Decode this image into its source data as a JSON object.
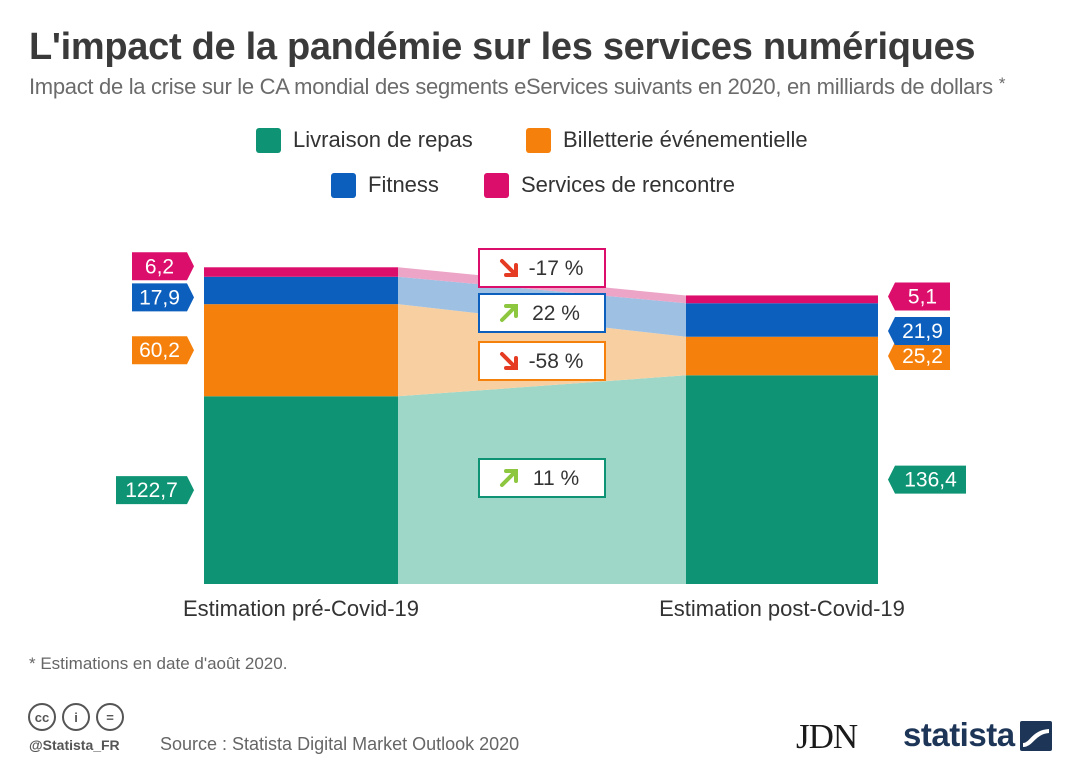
{
  "title": "L'impact de la pandémie sur les services numériques",
  "subtitle": "Impact de la crise sur le CA mondial des segments eServices suivants en 2020, en milliards de dollars",
  "subtitle_marker": "*",
  "legend": [
    {
      "label": "Livraison de repas",
      "color": "#0e9474"
    },
    {
      "label": "Billetterie événementielle",
      "color": "#f5810c"
    },
    {
      "label": "Fitness",
      "color": "#0c5fbd"
    },
    {
      "label": "Services de rencontre",
      "color": "#dc0e6b"
    }
  ],
  "chart_data": {
    "type": "bar",
    "stacked": true,
    "categories": [
      "Estimation pré-Covid-19",
      "Estimation post-Covid-19"
    ],
    "series": [
      {
        "name": "Livraison de repas",
        "values": [
          122.7,
          136.4
        ],
        "labels": [
          "122,7",
          "136,4"
        ],
        "change": "11 %",
        "direction": "up",
        "color": "#0e9474",
        "flow_color": "#9ed7c8"
      },
      {
        "name": "Billetterie événementielle",
        "values": [
          60.2,
          25.2
        ],
        "labels": [
          "60,2",
          "25,2"
        ],
        "change": "-58 %",
        "direction": "down",
        "color": "#f5810c",
        "flow_color": "#f8cfa0"
      },
      {
        "name": "Fitness",
        "values": [
          17.9,
          21.9
        ],
        "labels": [
          "17,9",
          "21,9"
        ],
        "change": "22 %",
        "direction": "up",
        "color": "#0c5fbd",
        "flow_color": "#9ec0e3"
      },
      {
        "name": "Services de rencontre",
        "values": [
          6.2,
          5.1
        ],
        "labels": [
          "6,2",
          "5,1"
        ],
        "change": "-17 %",
        "direction": "down",
        "color": "#dc0e6b",
        "flow_color": "#eca4c7"
      }
    ],
    "change_colors": {
      "up": "#8dc63f",
      "down": "#e53b22"
    }
  },
  "footnote": "* Estimations en date d'août 2020.",
  "license_icons": [
    "cc-icon",
    "by-icon",
    "nd-icon"
  ],
  "license_symbols": [
    "cc",
    "i",
    "="
  ],
  "handle": "@Statista_FR",
  "source": "Source : Statista Digital Market Outlook 2020",
  "brand_jdn": "JDN",
  "brand_statista": "statista"
}
